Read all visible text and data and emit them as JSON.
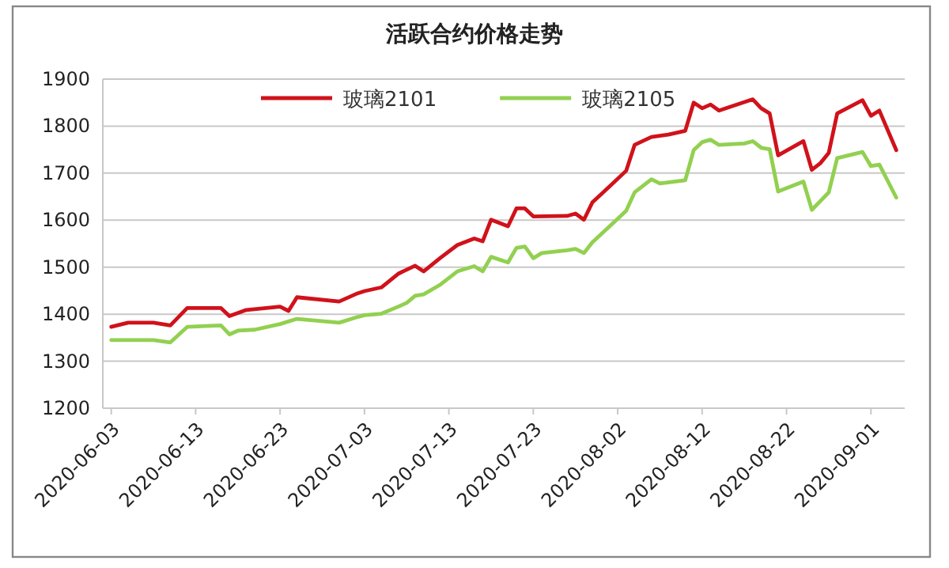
{
  "chart_data": {
    "type": "line",
    "title": "活跃合约价格走势",
    "xlim": [
      "2020-06-02",
      "2020-09-05"
    ],
    "xticks": [
      "2020-06-03",
      "2020-06-13",
      "2020-06-23",
      "2020-07-03",
      "2020-07-13",
      "2020-07-23",
      "2020-08-02",
      "2020-08-12",
      "2020-08-22",
      "2020-09-01"
    ],
    "ylim": [
      1200,
      1900
    ],
    "yticks": [
      1200,
      1300,
      1400,
      1500,
      1600,
      1700,
      1800,
      1900
    ],
    "grid": "y",
    "legend": "top",
    "marker": "none",
    "line_style": "solid",
    "series": [
      {
        "name": "玻璃2101",
        "color": "#d0121b",
        "x": [
          "2020-06-03",
          "2020-06-05",
          "2020-06-08",
          "2020-06-10",
          "2020-06-12",
          "2020-06-16",
          "2020-06-17",
          "2020-06-19",
          "2020-06-23",
          "2020-06-24",
          "2020-06-25",
          "2020-06-30",
          "2020-07-02",
          "2020-07-03",
          "2020-07-05",
          "2020-07-07",
          "2020-07-09",
          "2020-07-10",
          "2020-07-12",
          "2020-07-14",
          "2020-07-16",
          "2020-07-17",
          "2020-07-18",
          "2020-07-20",
          "2020-07-21",
          "2020-07-22",
          "2020-07-23",
          "2020-07-27",
          "2020-07-28",
          "2020-07-29",
          "2020-07-30",
          "2020-08-01",
          "2020-08-03",
          "2020-08-04",
          "2020-08-06",
          "2020-08-08",
          "2020-08-10",
          "2020-08-11",
          "2020-08-12",
          "2020-08-13",
          "2020-08-14",
          "2020-08-18",
          "2020-08-19",
          "2020-08-20",
          "2020-08-21",
          "2020-08-24",
          "2020-08-25",
          "2020-08-26",
          "2020-08-27",
          "2020-08-28",
          "2020-08-31",
          "2020-09-01",
          "2020-09-02",
          "2020-09-04"
        ],
        "values": [
          1373,
          1382,
          1382,
          1376,
          1413,
          1413,
          1396,
          1409,
          1416,
          1407,
          1436,
          1427,
          1443,
          1449,
          1457,
          1486,
          1503,
          1491,
          1520,
          1547,
          1561,
          1555,
          1601,
          1587,
          1625,
          1625,
          1608,
          1609,
          1614,
          1601,
          1638,
          1671,
          1705,
          1760,
          1777,
          1782,
          1790,
          1850,
          1838,
          1846,
          1833,
          1857,
          1838,
          1827,
          1738,
          1768,
          1707,
          1721,
          1743,
          1827,
          1855,
          1822,
          1833,
          1749
        ]
      },
      {
        "name": "玻璃2105",
        "color": "#92d050",
        "x": [
          "2020-06-03",
          "2020-06-08",
          "2020-06-10",
          "2020-06-12",
          "2020-06-16",
          "2020-06-17",
          "2020-06-18",
          "2020-06-20",
          "2020-06-23",
          "2020-06-25",
          "2020-06-30",
          "2020-07-02",
          "2020-07-03",
          "2020-07-05",
          "2020-07-07",
          "2020-07-08",
          "2020-07-09",
          "2020-07-10",
          "2020-07-12",
          "2020-07-14",
          "2020-07-16",
          "2020-07-17",
          "2020-07-18",
          "2020-07-20",
          "2020-07-21",
          "2020-07-22",
          "2020-07-23",
          "2020-07-24",
          "2020-07-27",
          "2020-07-28",
          "2020-07-29",
          "2020-07-30",
          "2020-08-01",
          "2020-08-03",
          "2020-08-04",
          "2020-08-06",
          "2020-08-07",
          "2020-08-10",
          "2020-08-11",
          "2020-08-12",
          "2020-08-13",
          "2020-08-14",
          "2020-08-17",
          "2020-08-18",
          "2020-08-19",
          "2020-08-20",
          "2020-08-21",
          "2020-08-24",
          "2020-08-25",
          "2020-08-27",
          "2020-08-28",
          "2020-08-31",
          "2020-09-01",
          "2020-09-02",
          "2020-09-04"
        ],
        "values": [
          1345,
          1345,
          1340,
          1373,
          1376,
          1357,
          1365,
          1367,
          1379,
          1390,
          1382,
          1393,
          1398,
          1401,
          1416,
          1424,
          1439,
          1442,
          1463,
          1491,
          1502,
          1491,
          1522,
          1510,
          1541,
          1544,
          1519,
          1530,
          1536,
          1539,
          1530,
          1553,
          1586,
          1620,
          1659,
          1687,
          1678,
          1685,
          1749,
          1766,
          1771,
          1760,
          1763,
          1768,
          1754,
          1751,
          1661,
          1682,
          1622,
          1659,
          1732,
          1745,
          1715,
          1718,
          1648
        ]
      }
    ]
  }
}
